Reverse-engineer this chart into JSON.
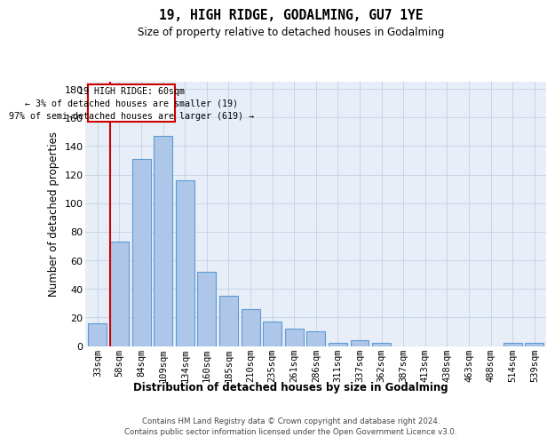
{
  "title": "19, HIGH RIDGE, GODALMING, GU7 1YE",
  "subtitle": "Size of property relative to detached houses in Godalming",
  "xlabel": "Distribution of detached houses by size in Godalming",
  "ylabel": "Number of detached properties",
  "categories": [
    "33sqm",
    "58sqm",
    "84sqm",
    "109sqm",
    "134sqm",
    "160sqm",
    "185sqm",
    "210sqm",
    "235sqm",
    "261sqm",
    "286sqm",
    "311sqm",
    "337sqm",
    "362sqm",
    "387sqm",
    "413sqm",
    "438sqm",
    "463sqm",
    "488sqm",
    "514sqm",
    "539sqm"
  ],
  "values": [
    16,
    73,
    131,
    147,
    116,
    52,
    35,
    26,
    17,
    12,
    10,
    2,
    4,
    2,
    0,
    0,
    0,
    0,
    0,
    2,
    2
  ],
  "bar_color": "#aec6e8",
  "bar_edge_color": "#5b9bd5",
  "marker_line_color": "#cc0000",
  "annotation_title": "19 HIGH RIDGE: 60sqm",
  "annotation_line1": "← 3% of detached houses are smaller (19)",
  "annotation_line2": "97% of semi-detached houses are larger (619) →",
  "ylim_max": 185,
  "yticks": [
    0,
    20,
    40,
    60,
    80,
    100,
    120,
    140,
    160,
    180
  ],
  "bg_color": "#e8eef7",
  "grid_color": "#c8d4e8",
  "footer1": "Contains HM Land Registry data © Crown copyright and database right 2024.",
  "footer2": "Contains public sector information licensed under the Open Government Licence v3.0."
}
